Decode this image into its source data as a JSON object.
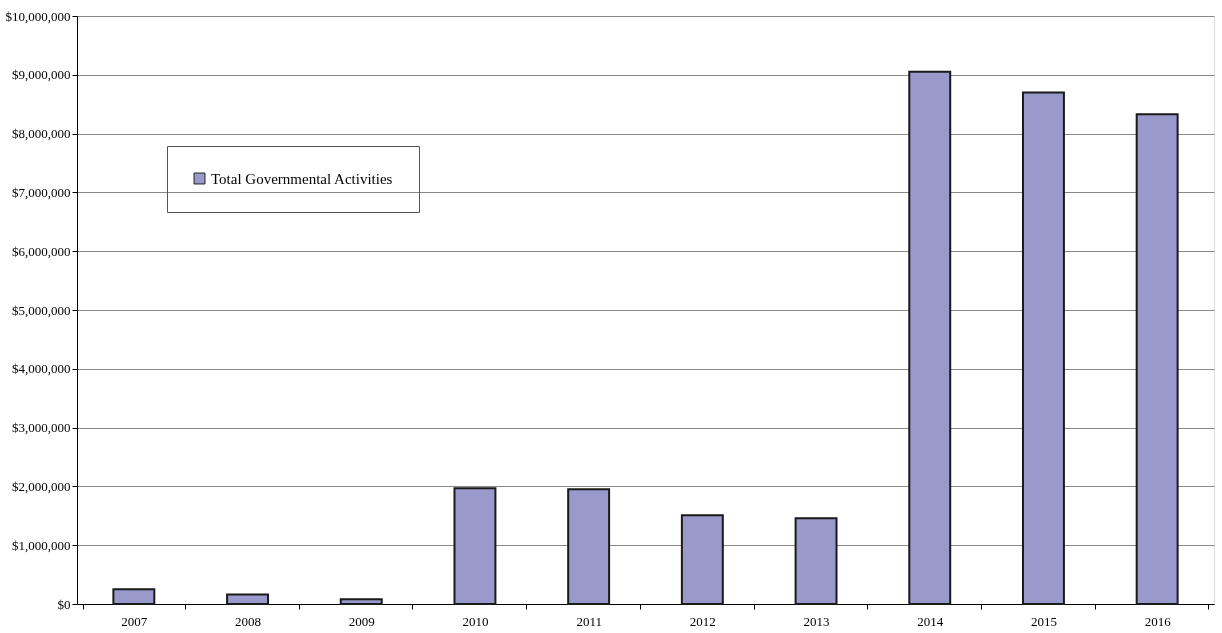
{
  "chart_data": {
    "type": "bar",
    "categories": [
      "2007",
      "2008",
      "2009",
      "2010",
      "2011",
      "2012",
      "2013",
      "2014",
      "2015",
      "2016"
    ],
    "series": [
      {
        "name": "Total Governmental Activities",
        "color": "#9999cc",
        "values": [
          250000,
          160000,
          80000,
          1970000,
          1950000,
          1510000,
          1460000,
          9050000,
          8700000,
          8330000
        ]
      }
    ],
    "ylim": [
      0,
      10000000
    ],
    "yticks": [
      {
        "value": 0,
        "label": "$0"
      },
      {
        "value": 1000000,
        "label": "$1,000,000"
      },
      {
        "value": 2000000,
        "label": "$2,000,000"
      },
      {
        "value": 3000000,
        "label": "$3,000,000"
      },
      {
        "value": 4000000,
        "label": "$4,000,000"
      },
      {
        "value": 5000000,
        "label": "$5,000,000"
      },
      {
        "value": 6000000,
        "label": "$6,000,000"
      },
      {
        "value": 7000000,
        "label": "$7,000,000"
      },
      {
        "value": 8000000,
        "label": "$8,000,000"
      },
      {
        "value": 9000000,
        "label": "$9,000,000"
      },
      {
        "value": 10000000,
        "label": "$10,000,000"
      }
    ],
    "grid": "y",
    "legend": "top left"
  }
}
